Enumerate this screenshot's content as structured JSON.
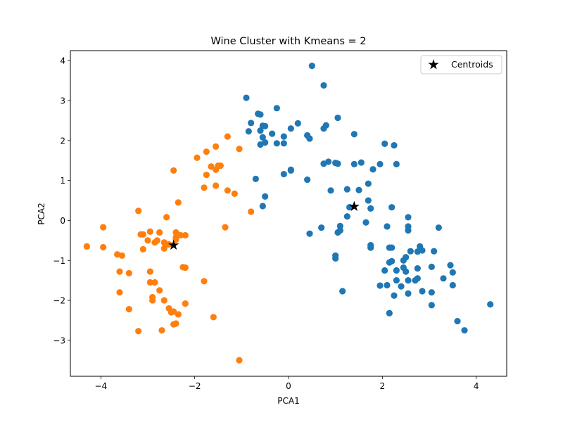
{
  "chart_data": {
    "type": "scatter",
    "title": "Wine Cluster with Kmeans = 2",
    "xlabel": "PCA1",
    "ylabel": "PCA2",
    "xlim": [
      -4.65,
      4.65
    ],
    "ylim": [
      -3.9,
      4.25
    ],
    "xticks": [
      -4,
      -2,
      0,
      2,
      4
    ],
    "yticks": [
      -3,
      -2,
      -1,
      0,
      1,
      2,
      3,
      4
    ],
    "xtick_labels": [
      "−4",
      "−2",
      "0",
      "2",
      "4"
    ],
    "ytick_labels": [
      "−3",
      "−2",
      "−1",
      "0",
      "1",
      "2",
      "3",
      "4"
    ],
    "grid": false,
    "legend_position": "top-right",
    "series": [
      {
        "color": "#1f77b4",
        "points": [
          [
            0.5,
            3.87
          ],
          [
            0.75,
            3.38
          ],
          [
            -0.9,
            3.07
          ],
          [
            -0.6,
            2.65
          ],
          [
            -0.8,
            2.44
          ],
          [
            -0.65,
            2.67
          ],
          [
            -0.25,
            2.81
          ],
          [
            0.2,
            2.43
          ],
          [
            1.05,
            2.57
          ],
          [
            -0.85,
            2.23
          ],
          [
            -0.55,
            2.37
          ],
          [
            -0.6,
            2.25
          ],
          [
            -0.5,
            2.36
          ],
          [
            -0.35,
            2.17
          ],
          [
            -0.55,
            2.08
          ],
          [
            -0.1,
            2.1
          ],
          [
            0.05,
            2.3
          ],
          [
            0.8,
            2.38
          ],
          [
            0.75,
            2.3
          ],
          [
            1.4,
            2.16
          ],
          [
            0.4,
            2.13
          ],
          [
            0.45,
            2.05
          ],
          [
            -0.6,
            1.9
          ],
          [
            -0.5,
            1.95
          ],
          [
            -0.25,
            1.93
          ],
          [
            -0.1,
            1.93
          ],
          [
            2.05,
            1.92
          ],
          [
            2.25,
            1.88
          ],
          [
            0.75,
            1.42
          ],
          [
            0.85,
            1.47
          ],
          [
            1.0,
            1.44
          ],
          [
            1.05,
            1.42
          ],
          [
            1.4,
            1.41
          ],
          [
            1.55,
            1.45
          ],
          [
            1.8,
            1.28
          ],
          [
            1.95,
            1.41
          ],
          [
            2.3,
            1.41
          ],
          [
            -0.1,
            1.16
          ],
          [
            0.05,
            1.27
          ],
          [
            0.05,
            1.25
          ],
          [
            -0.7,
            1.04
          ],
          [
            0.4,
            1.02
          ],
          [
            0.9,
            0.75
          ],
          [
            1.25,
            0.78
          ],
          [
            1.5,
            0.76
          ],
          [
            1.7,
            0.92
          ],
          [
            -0.5,
            0.6
          ],
          [
            -0.55,
            0.36
          ],
          [
            1.3,
            0.33
          ],
          [
            1.7,
            0.5
          ],
          [
            1.75,
            0.3
          ],
          [
            2.2,
            0.33
          ],
          [
            2.55,
            0.08
          ],
          [
            1.25,
            0.1
          ],
          [
            1.1,
            -0.14
          ],
          [
            1.65,
            -0.05
          ],
          [
            2.1,
            -0.15
          ],
          [
            2.55,
            -0.15
          ],
          [
            2.55,
            -0.25
          ],
          [
            3.2,
            -0.18
          ],
          [
            0.45,
            -0.33
          ],
          [
            0.7,
            -0.18
          ],
          [
            1.05,
            -0.3
          ],
          [
            1.1,
            -0.25
          ],
          [
            1.75,
            -0.62
          ],
          [
            1.75,
            -0.68
          ],
          [
            2.15,
            -0.68
          ],
          [
            2.2,
            -0.68
          ],
          [
            2.6,
            -0.77
          ],
          [
            2.75,
            -0.78
          ],
          [
            2.8,
            -0.65
          ],
          [
            2.85,
            -0.75
          ],
          [
            3.1,
            -0.77
          ],
          [
            1.0,
            -0.88
          ],
          [
            1.0,
            -0.95
          ],
          [
            2.15,
            -1.05
          ],
          [
            2.2,
            -1.02
          ],
          [
            2.5,
            -0.92
          ],
          [
            2.45,
            -1.0
          ],
          [
            2.45,
            -1.18
          ],
          [
            2.75,
            -1.2
          ],
          [
            3.05,
            -1.16
          ],
          [
            3.45,
            -1.12
          ],
          [
            2.05,
            -1.25
          ],
          [
            2.3,
            -1.25
          ],
          [
            2.5,
            -1.28
          ],
          [
            3.5,
            -1.3
          ],
          [
            2.55,
            -1.5
          ],
          [
            2.7,
            -1.5
          ],
          [
            2.75,
            -1.45
          ],
          [
            2.3,
            -1.5
          ],
          [
            3.3,
            -1.45
          ],
          [
            1.95,
            -1.63
          ],
          [
            2.1,
            -1.62
          ],
          [
            2.4,
            -1.65
          ],
          [
            3.5,
            -1.62
          ],
          [
            2.25,
            -1.88
          ],
          [
            2.55,
            -1.83
          ],
          [
            2.85,
            -1.77
          ],
          [
            3.05,
            -1.8
          ],
          [
            1.15,
            -1.77
          ],
          [
            3.05,
            -2.12
          ],
          [
            4.3,
            -2.1
          ],
          [
            2.15,
            -2.32
          ],
          [
            3.6,
            -2.52
          ],
          [
            3.75,
            -2.75
          ]
        ]
      },
      {
        "color": "#ff7f0e",
        "points": [
          [
            -1.05,
            -3.5
          ],
          [
            -3.2,
            -2.77
          ],
          [
            -2.7,
            -2.75
          ],
          [
            -2.45,
            -2.6
          ],
          [
            -2.4,
            -2.58
          ],
          [
            -1.6,
            -2.42
          ],
          [
            -2.55,
            -2.2
          ],
          [
            -2.5,
            -2.3
          ],
          [
            -2.35,
            -2.35
          ],
          [
            -2.45,
            -2.28
          ],
          [
            -3.4,
            -2.22
          ],
          [
            -2.9,
            -1.92
          ],
          [
            -2.9,
            -2.0
          ],
          [
            -2.65,
            -2.0
          ],
          [
            -2.2,
            -2.08
          ],
          [
            -3.6,
            -1.8
          ],
          [
            -2.75,
            -1.75
          ],
          [
            -2.95,
            -1.55
          ],
          [
            -2.85,
            -1.55
          ],
          [
            -1.8,
            -1.52
          ],
          [
            -3.6,
            -1.28
          ],
          [
            -3.4,
            -1.32
          ],
          [
            -2.95,
            -1.28
          ],
          [
            -2.25,
            -1.17
          ],
          [
            -2.2,
            -1.18
          ],
          [
            -3.65,
            -0.85
          ],
          [
            -3.55,
            -0.88
          ],
          [
            -3.1,
            -0.72
          ],
          [
            -4.3,
            -0.65
          ],
          [
            -3.95,
            -0.67
          ],
          [
            -2.85,
            -0.55
          ],
          [
            -2.65,
            -0.55
          ],
          [
            -2.65,
            -0.7
          ],
          [
            -2.55,
            -0.6
          ],
          [
            -3.0,
            -0.5
          ],
          [
            -2.8,
            -0.5
          ],
          [
            -2.4,
            -0.48
          ],
          [
            -3.15,
            -0.35
          ],
          [
            -3.1,
            -0.35
          ],
          [
            -2.95,
            -0.28
          ],
          [
            -2.75,
            -0.3
          ],
          [
            -2.4,
            -0.3
          ],
          [
            -2.3,
            -0.37
          ],
          [
            -2.4,
            -0.42
          ],
          [
            -2.2,
            -0.37
          ],
          [
            -3.95,
            -0.17
          ],
          [
            -1.35,
            -0.17
          ],
          [
            -3.2,
            0.24
          ],
          [
            -2.6,
            0.08
          ],
          [
            -0.8,
            0.22
          ],
          [
            -2.35,
            0.45
          ],
          [
            -1.8,
            0.82
          ],
          [
            -1.55,
            0.87
          ],
          [
            -1.3,
            0.75
          ],
          [
            -1.15,
            0.67
          ],
          [
            -1.75,
            1.14
          ],
          [
            -1.65,
            1.35
          ],
          [
            -1.5,
            1.37
          ],
          [
            -1.45,
            1.37
          ],
          [
            -1.55,
            1.27
          ],
          [
            -2.45,
            1.25
          ],
          [
            -1.95,
            1.57
          ],
          [
            -1.75,
            1.72
          ],
          [
            -1.55,
            1.85
          ],
          [
            -1.05,
            1.79
          ],
          [
            -1.3,
            2.1
          ]
        ]
      }
    ],
    "centroids": {
      "name": "Centroids",
      "marker": "star",
      "color": "#000000",
      "points": [
        [
          1.4,
          0.35
        ],
        [
          -2.45,
          -0.62
        ]
      ]
    }
  }
}
